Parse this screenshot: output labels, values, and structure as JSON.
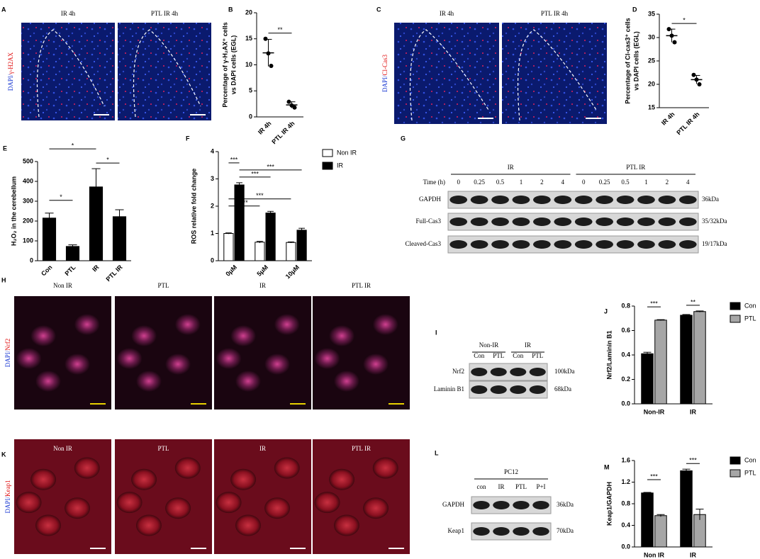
{
  "panels": [
    {
      "letter": "A",
      "channel": [
        "DAPI/",
        "γ-H2AX"
      ],
      "titles": [
        "IR 4h",
        "PTL IR 4h"
      ]
    },
    {
      "letter": "C",
      "channel": [
        "DAPI/",
        "Cl-Cas3"
      ],
      "titles": [
        "IR 4h",
        "PTL IR 4h"
      ]
    },
    {
      "letter": "H",
      "channel": [
        "DAPI/",
        "Nrf2"
      ],
      "titles": [
        "Non IR",
        "PTL",
        "IR",
        "PTL IR"
      ]
    },
    {
      "letter": "K",
      "channel": [
        "DAPI/",
        "Keap1"
      ],
      "titles": [
        "Non IR",
        "PTL",
        "IR",
        "PTL IR"
      ]
    }
  ],
  "blots": [
    {
      "letter": "G",
      "groups": [
        "IR",
        "PTL IR"
      ],
      "lane_header": "Time (h)",
      "lanes": [
        "0",
        "0.25",
        "0.5",
        "1",
        "2",
        "4",
        "0",
        "0.25",
        "0.5",
        "1",
        "2",
        "4"
      ],
      "rows": [
        "GAPDH",
        "Full-Cas3",
        "Cleaved-Cas3"
      ],
      "sizes": [
        "36kDa",
        "35/32kDa",
        "19/17kDa"
      ]
    },
    {
      "letter": "I",
      "groups": [
        "Non-IR",
        "IR"
      ],
      "lanes": [
        "Con",
        "PTL",
        "Con",
        "PTL"
      ],
      "rows": [
        "Nrf2",
        "Laminin B1"
      ],
      "sizes": [
        "100kDa",
        "68kDa"
      ]
    },
    {
      "letter": "L",
      "groups": [
        "PC12"
      ],
      "lanes": [
        "con",
        "IR",
        "PTL",
        "P+I"
      ],
      "rows": [
        "GAPDH",
        "Keap1"
      ],
      "sizes": [
        "36kDa",
        "70kDa"
      ]
    }
  ],
  "chart_data": [
    {
      "letter": "B",
      "type": "dot",
      "ylabel": [
        "Percentage of γ-H₂AX⁺ cells",
        "vs DAPI cells (EGL)"
      ],
      "categories": [
        "IR 4h",
        "PTL IR 4h"
      ],
      "color": "#000000",
      "values": [
        12.3,
        2.3
      ],
      "errors": [
        2.6,
        0.6
      ],
      "points": [
        [
          15,
          12.2,
          9.8
        ],
        [
          2.9,
          2.2,
          1.8
        ]
      ],
      "ylim": [
        0,
        20
      ],
      "yticks": [
        0,
        5,
        10,
        15,
        20
      ],
      "significance": [
        {
          "from": [
            0,
            0
          ],
          "to": [
            1,
            0
          ],
          "label": "**"
        }
      ]
    },
    {
      "letter": "D",
      "type": "dot",
      "ylabel": [
        "Percentage of Cl-cas3⁺ cells",
        "vs DAPI cells (EGL)"
      ],
      "categories": [
        "IR 4h",
        "PTL IR 4h"
      ],
      "color": "#000000",
      "values": [
        30.4,
        21
      ],
      "errors": [
        1.4,
        0.9
      ],
      "points": [
        [
          31.8,
          30.4,
          29
        ],
        [
          22,
          21,
          20
        ]
      ],
      "ylim": [
        15,
        35
      ],
      "yticks": [
        15,
        20,
        25,
        30,
        35
      ],
      "significance": [
        {
          "from": [
            0,
            0
          ],
          "to": [
            1,
            0
          ],
          "label": "*"
        }
      ]
    },
    {
      "letter": "E",
      "type": "bar",
      "ylabel": [
        "H₂O₂ in the cerebellum"
      ],
      "categories": [
        "Con",
        "PTL",
        "IR",
        "PTL IR"
      ],
      "series": [
        {
          "color": "#000000",
          "values": [
            215,
            72,
            372,
            222
          ],
          "errors": [
            25,
            8,
            92,
            35
          ]
        }
      ],
      "ylim": [
        0,
        500
      ],
      "yticks": [
        0,
        100,
        200,
        300,
        400,
        500
      ],
      "significance": [
        {
          "from": [
            0,
            0
          ],
          "to": [
            2,
            0
          ],
          "label": "*"
        },
        {
          "from": [
            0,
            0
          ],
          "to": [
            1,
            0
          ],
          "label": "*"
        },
        {
          "from": [
            2,
            0
          ],
          "to": [
            3,
            0
          ],
          "label": "*"
        }
      ]
    },
    {
      "letter": "F",
      "type": "bar",
      "ylabel": [
        "ROS relative fold change"
      ],
      "categories": [
        "0μM",
        "5μM",
        "10μM"
      ],
      "series": [
        {
          "name": "Non IR",
          "color": "#ffffff",
          "values": [
            1,
            0.68,
            0.67
          ],
          "errors": [
            0.02,
            0.03,
            0.02
          ]
        },
        {
          "name": "IR",
          "color": "#000000",
          "values": [
            2.78,
            1.75,
            1.12
          ],
          "errors": [
            0.08,
            0.06,
            0.07
          ]
        }
      ],
      "ylim": [
        0,
        4
      ],
      "yticks": [
        0,
        1,
        2,
        3,
        4
      ],
      "significance": [
        {
          "from": [
            0,
            0
          ],
          "to": [
            2,
            0
          ],
          "label": "***"
        },
        {
          "from": [
            0,
            0
          ],
          "to": [
            1,
            0
          ],
          "label": "***"
        },
        {
          "from": [
            0,
            0
          ],
          "to": [
            0,
            1
          ],
          "label": "***"
        },
        {
          "from": [
            0,
            1
          ],
          "to": [
            2,
            1
          ],
          "label": "***"
        },
        {
          "from": [
            0,
            1
          ],
          "to": [
            1,
            1
          ],
          "label": "***"
        }
      ]
    },
    {
      "letter": "J",
      "type": "bar",
      "ylabel": [
        "Nrf2/Laminin B1"
      ],
      "categories": [
        "Non-IR",
        "IR"
      ],
      "series": [
        {
          "name": "Con",
          "color": "#000000",
          "values": [
            0.41,
            0.725
          ],
          "errors": [
            0.012,
            0.006
          ]
        },
        {
          "name": "PTL",
          "color": "#a6a6a6",
          "values": [
            0.685,
            0.755
          ],
          "errors": [
            0.004,
            0.005
          ]
        }
      ],
      "ylim": [
        0,
        0.8
      ],
      "yticks": [
        {
          "value": 0,
          "label": "0.0"
        },
        0.2,
        0.4,
        0.6,
        0.8
      ],
      "significance": [
        {
          "from": [
            0,
            0
          ],
          "to": [
            0,
            1
          ],
          "label": "***"
        },
        {
          "from": [
            1,
            0
          ],
          "to": [
            1,
            1
          ],
          "label": "**"
        }
      ]
    },
    {
      "letter": "M",
      "type": "bar",
      "ylabel": [
        "Keap1/GAPDH"
      ],
      "categories": [
        "Non IR",
        "IR"
      ],
      "series": [
        {
          "name": "Con",
          "color": "#000000",
          "values": [
            1.0,
            1.41
          ],
          "errors": [
            0.01,
            0.03
          ]
        },
        {
          "name": "PTL",
          "color": "#a6a6a6",
          "values": [
            0.58,
            0.6
          ],
          "errors": [
            0.02,
            0.1
          ]
        }
      ],
      "ylim": [
        0,
        1.6
      ],
      "yticks": [
        {
          "value": 0,
          "label": "0.0"
        },
        0.4,
        0.8,
        1.2,
        1.6
      ],
      "significance": [
        {
          "from": [
            0,
            0
          ],
          "to": [
            0,
            1
          ],
          "label": "***"
        },
        {
          "from": [
            1,
            0
          ],
          "to": [
            1,
            1
          ],
          "label": "***"
        }
      ]
    }
  ]
}
